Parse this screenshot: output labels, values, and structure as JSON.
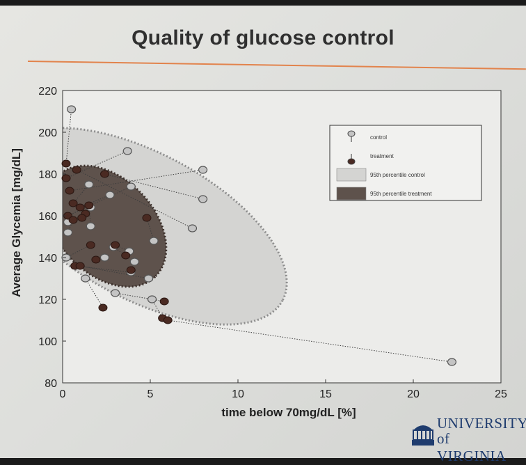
{
  "slide": {
    "title": "Quality of glucose control",
    "logo": {
      "line1": "UNIVERSITY",
      "line2": "of VIRGINIA"
    }
  },
  "chart_data": {
    "type": "scatter",
    "xlabel": "time below 70mg/dL [%]",
    "ylabel": "Average Glycemia [mg/dL]",
    "xlim": [
      0,
      25
    ],
    "ylim": [
      80,
      220
    ],
    "xticks": [
      0,
      5,
      10,
      15,
      20,
      25
    ],
    "yticks": [
      80,
      100,
      120,
      140,
      160,
      180,
      200,
      220
    ],
    "grid": false,
    "legend_position": "top-right",
    "legend": [
      {
        "label": "control",
        "kind": "marker-light"
      },
      {
        "label": "treatment",
        "kind": "marker-dark"
      },
      {
        "label": "95th percentile control",
        "kind": "patch-light"
      },
      {
        "label": "95th percentile treatment",
        "kind": "patch-dark"
      }
    ],
    "colors": {
      "control": "#c4c4c4",
      "treatment": "#4a2a22",
      "region_control": "#d4d4d2",
      "region_treatment": "#5e524c"
    },
    "pairs": [
      {
        "c": [
          0.5,
          211
        ],
        "t": [
          0.2,
          185
        ]
      },
      {
        "c": [
          3.7,
          191
        ],
        "t": [
          0.2,
          178
        ]
      },
      {
        "c": [
          8.0,
          182
        ],
        "t": [
          0.4,
          172
        ]
      },
      {
        "c": [
          7.4,
          154
        ],
        "t": [
          0.8,
          182
        ]
      },
      {
        "c": [
          8.0,
          168
        ],
        "t": [
          2.4,
          180
        ]
      },
      {
        "c": [
          3.9,
          174
        ],
        "t": [
          0.3,
          160
        ]
      },
      {
        "c": [
          1.5,
          175
        ],
        "t": [
          0.6,
          166
        ]
      },
      {
        "c": [
          2.7,
          170
        ],
        "t": [
          1.0,
          164
        ]
      },
      {
        "c": [
          1.6,
          164
        ],
        "t": [
          1.3,
          161
        ]
      },
      {
        "c": [
          0.3,
          157
        ],
        "t": [
          1.1,
          159
        ]
      },
      {
        "c": [
          5.2,
          148
        ],
        "t": [
          4.8,
          159
        ]
      },
      {
        "c": [
          0.3,
          152
        ],
        "t": [
          0.6,
          158
        ]
      },
      {
        "c": [
          1.6,
          155
        ],
        "t": [
          1.5,
          165
        ]
      },
      {
        "c": [
          0.2,
          140
        ],
        "t": [
          1.6,
          146
        ]
      },
      {
        "c": [
          2.4,
          140
        ],
        "t": [
          1.9,
          139
        ]
      },
      {
        "c": [
          3.8,
          143
        ],
        "t": [
          3.0,
          146
        ]
      },
      {
        "c": [
          2.9,
          145
        ],
        "t": [
          3.6,
          141
        ]
      },
      {
        "c": [
          4.1,
          138
        ],
        "t": [
          3.9,
          134
        ]
      },
      {
        "c": [
          3.9,
          133
        ],
        "t": [
          0.7,
          136
        ]
      },
      {
        "c": [
          4.9,
          130
        ],
        "t": [
          1.0,
          136
        ]
      },
      {
        "c": [
          1.3,
          130
        ],
        "t": [
          2.3,
          116
        ]
      },
      {
        "c": [
          3.0,
          123
        ],
        "t": [
          5.8,
          119
        ]
      },
      {
        "c": [
          5.1,
          120
        ],
        "t": [
          5.7,
          111
        ]
      },
      {
        "c": [
          22.2,
          90
        ],
        "t": [
          6.0,
          110
        ]
      }
    ]
  }
}
